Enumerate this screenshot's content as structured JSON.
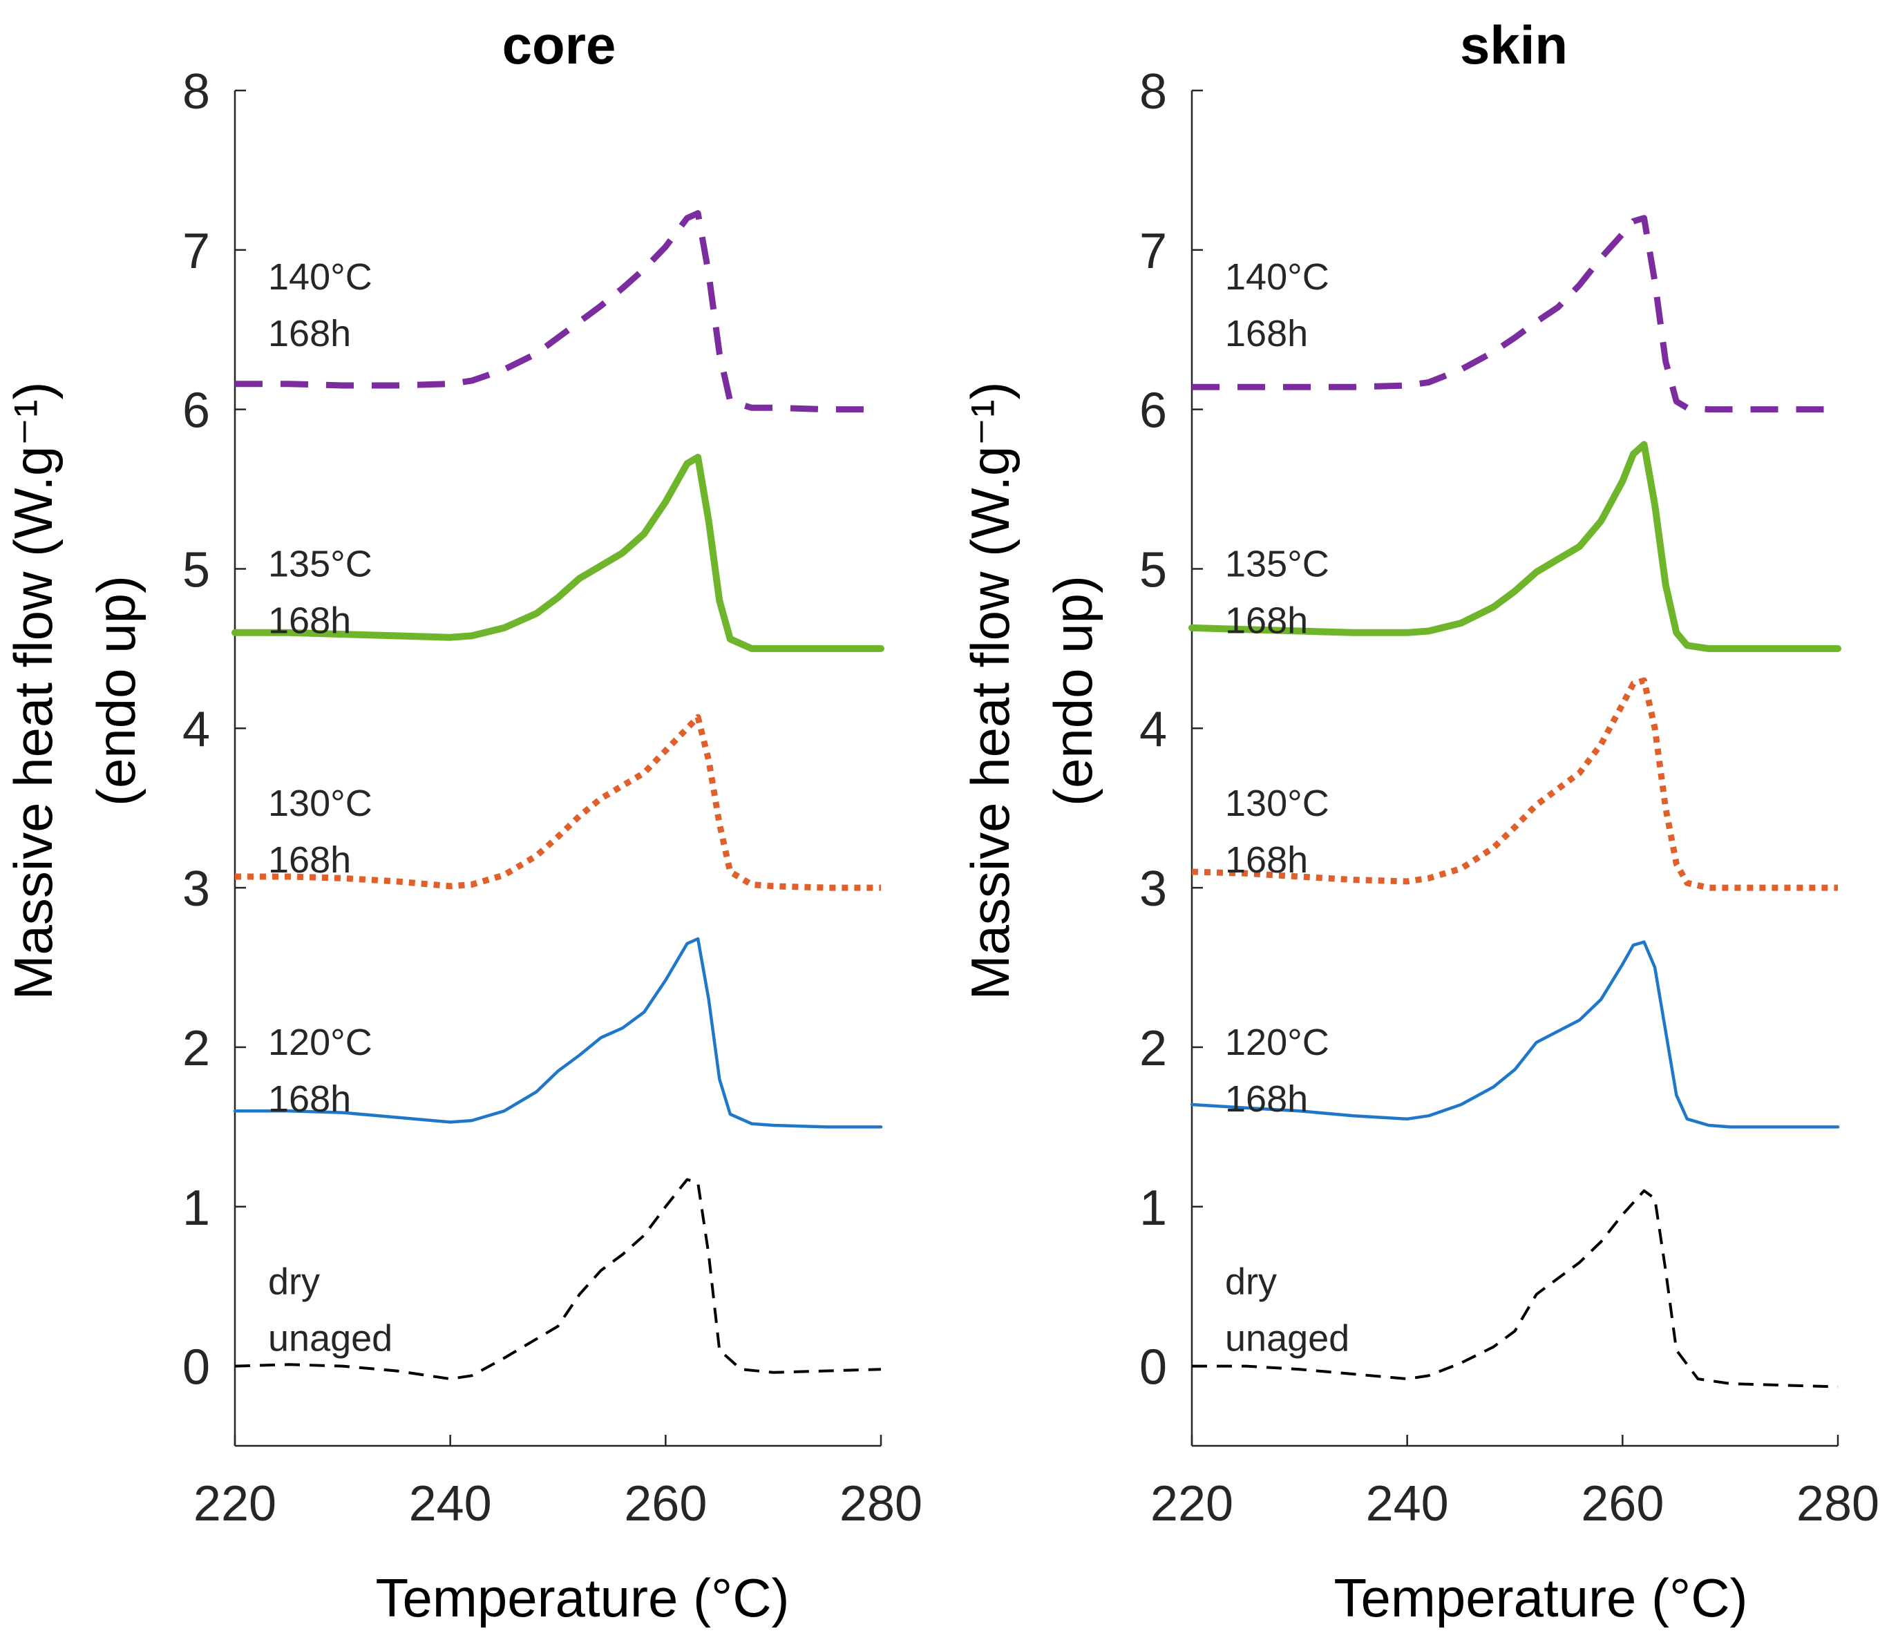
{
  "figure": {
    "y_axis_label_line1": "Massive heat flow (W.g⁻¹)",
    "y_axis_label_line2": "(endo up)"
  },
  "chart_data": [
    {
      "type": "line",
      "title": "core",
      "xlabel": "Temperature (°C)",
      "ylabel": "Massive heat flow (W.g⁻¹) (endo up)",
      "xlim": [
        220,
        280
      ],
      "ylim": [
        -0.5,
        8
      ],
      "xticks": [
        "220",
        "240",
        "260",
        "280"
      ],
      "yticks": [
        "0",
        "1",
        "2",
        "3",
        "4",
        "5",
        "6",
        "7",
        "8"
      ],
      "series": [
        {
          "name": "dry unaged",
          "label_line1": "dry",
          "label_line2": "unaged",
          "label_y": 0.4,
          "color": "#000000",
          "style": "dashed-thin",
          "x": [
            220,
            225,
            230,
            235,
            240,
            242,
            245,
            250,
            252,
            254,
            256,
            258,
            260,
            262,
            263,
            264,
            265,
            267,
            270,
            275,
            280
          ],
          "y": [
            0,
            0.01,
            0,
            -0.03,
            -0.08,
            -0.06,
            0.05,
            0.25,
            0.45,
            0.6,
            0.7,
            0.82,
            1.0,
            1.17,
            1.15,
            0.7,
            0.1,
            -0.02,
            -0.04,
            -0.03,
            -0.02
          ]
        },
        {
          "name": "120°C 168h",
          "label_line1": "120°C",
          "label_line2": "168h",
          "label_y": 1.9,
          "color": "#1f77c9",
          "style": "solid-thin",
          "x": [
            220,
            225,
            230,
            235,
            240,
            242,
            245,
            248,
            250,
            252,
            254,
            256,
            258,
            260,
            262,
            263,
            264,
            265,
            266,
            268,
            270,
            275,
            280
          ],
          "y": [
            1.6,
            1.6,
            1.59,
            1.56,
            1.53,
            1.54,
            1.6,
            1.72,
            1.85,
            1.95,
            2.06,
            2.12,
            2.22,
            2.42,
            2.65,
            2.68,
            2.3,
            1.8,
            1.58,
            1.52,
            1.51,
            1.5,
            1.5
          ]
        },
        {
          "name": "130°C 168h",
          "label_line1": "130°C",
          "label_line2": "168h",
          "label_y": 3.4,
          "color": "#e0602c",
          "style": "dotted",
          "x": [
            220,
            225,
            230,
            235,
            240,
            242,
            245,
            248,
            250,
            252,
            254,
            256,
            258,
            260,
            262,
            263,
            264,
            265,
            266,
            268,
            270,
            275,
            280
          ],
          "y": [
            3.07,
            3.07,
            3.06,
            3.04,
            3.01,
            3.02,
            3.08,
            3.2,
            3.32,
            3.45,
            3.56,
            3.64,
            3.72,
            3.86,
            4.0,
            4.07,
            3.8,
            3.4,
            3.1,
            3.02,
            3.01,
            3.0,
            3.0
          ]
        },
        {
          "name": "135°C 168h",
          "label_line1": "135°C",
          "label_line2": "168h",
          "label_y": 4.9,
          "color": "#6fb52c",
          "style": "solid-thick",
          "x": [
            220,
            225,
            230,
            235,
            240,
            242,
            245,
            248,
            250,
            252,
            254,
            256,
            258,
            260,
            262,
            263,
            264,
            265,
            266,
            268,
            270,
            275,
            280
          ],
          "y": [
            4.6,
            4.6,
            4.59,
            4.58,
            4.57,
            4.58,
            4.63,
            4.72,
            4.82,
            4.94,
            5.02,
            5.1,
            5.22,
            5.42,
            5.66,
            5.7,
            5.3,
            4.8,
            4.56,
            4.5,
            4.5,
            4.5,
            4.5
          ]
        },
        {
          "name": "140°C 168h",
          "label_line1": "140°C",
          "label_line2": "168h",
          "label_y": 6.7,
          "color": "#7b2c9e",
          "style": "dashed-thick",
          "x": [
            220,
            225,
            230,
            235,
            240,
            242,
            245,
            248,
            250,
            252,
            254,
            256,
            258,
            260,
            262,
            263,
            264,
            265,
            266,
            268,
            270,
            275,
            280
          ],
          "y": [
            6.16,
            6.16,
            6.15,
            6.15,
            6.16,
            6.18,
            6.25,
            6.35,
            6.45,
            6.55,
            6.65,
            6.76,
            6.88,
            7.02,
            7.2,
            7.23,
            6.85,
            6.35,
            6.05,
            6.01,
            6.01,
            6.0,
            6.0
          ]
        }
      ]
    },
    {
      "type": "line",
      "title": "skin",
      "xlabel": "Temperature (°C)",
      "ylabel": "Massive heat flow (W.g⁻¹) (endo up)",
      "xlim": [
        220,
        280
      ],
      "ylim": [
        -0.5,
        8
      ],
      "xticks": [
        "220",
        "240",
        "260",
        "280"
      ],
      "yticks": [
        "0",
        "1",
        "2",
        "3",
        "4",
        "5",
        "6",
        "7",
        "8"
      ],
      "series": [
        {
          "name": "dry unaged",
          "label_line1": "dry",
          "label_line2": "unaged",
          "label_y": 0.4,
          "color": "#000000",
          "style": "dashed-thin",
          "x": [
            220,
            225,
            230,
            235,
            240,
            242,
            245,
            248,
            250,
            252,
            254,
            256,
            258,
            260,
            262,
            263,
            264,
            265,
            267,
            270,
            275,
            280
          ],
          "y": [
            0,
            0,
            -0.02,
            -0.05,
            -0.08,
            -0.06,
            0.02,
            0.12,
            0.22,
            0.45,
            0.55,
            0.65,
            0.78,
            0.95,
            1.1,
            1.05,
            0.6,
            0.1,
            -0.08,
            -0.11,
            -0.12,
            -0.13
          ]
        },
        {
          "name": "120°C 168h",
          "label_line1": "120°C",
          "label_line2": "168h",
          "label_y": 1.9,
          "color": "#1f77c9",
          "style": "solid-thin",
          "x": [
            220,
            225,
            230,
            235,
            240,
            242,
            245,
            248,
            250,
            252,
            254,
            256,
            258,
            260,
            261,
            262,
            263,
            264,
            265,
            266,
            268,
            270,
            275,
            280
          ],
          "y": [
            1.64,
            1.62,
            1.6,
            1.57,
            1.55,
            1.57,
            1.64,
            1.75,
            1.86,
            2.03,
            2.1,
            2.17,
            2.3,
            2.52,
            2.64,
            2.66,
            2.5,
            2.1,
            1.7,
            1.55,
            1.51,
            1.5,
            1.5,
            1.5
          ]
        },
        {
          "name": "130°C 168h",
          "label_line1": "130°C",
          "label_line2": "168h",
          "label_y": 3.4,
          "color": "#e0602c",
          "style": "dotted",
          "x": [
            220,
            225,
            230,
            235,
            240,
            242,
            245,
            248,
            250,
            252,
            254,
            256,
            258,
            260,
            261,
            262,
            263,
            264,
            265,
            266,
            268,
            270,
            275,
            280
          ],
          "y": [
            3.1,
            3.09,
            3.07,
            3.05,
            3.04,
            3.06,
            3.12,
            3.25,
            3.38,
            3.52,
            3.62,
            3.72,
            3.9,
            4.15,
            4.28,
            4.3,
            4.0,
            3.5,
            3.15,
            3.03,
            3.0,
            3.0,
            3.0,
            3.0
          ]
        },
        {
          "name": "135°C 168h",
          "label_line1": "135°C",
          "label_line2": "168h",
          "label_y": 4.9,
          "color": "#6fb52c",
          "style": "solid-thick",
          "x": [
            220,
            225,
            230,
            235,
            240,
            242,
            245,
            248,
            250,
            252,
            254,
            256,
            258,
            260,
            261,
            262,
            263,
            264,
            265,
            266,
            268,
            270,
            275,
            280
          ],
          "y": [
            4.63,
            4.62,
            4.61,
            4.6,
            4.6,
            4.61,
            4.66,
            4.76,
            4.86,
            4.98,
            5.06,
            5.14,
            5.3,
            5.55,
            5.72,
            5.78,
            5.4,
            4.9,
            4.6,
            4.52,
            4.5,
            4.5,
            4.5,
            4.5
          ]
        },
        {
          "name": "140°C 168h",
          "label_line1": "140°C",
          "label_line2": "168h",
          "label_y": 6.7,
          "color": "#7b2c9e",
          "style": "dashed-thick",
          "x": [
            220,
            225,
            230,
            235,
            240,
            242,
            245,
            248,
            250,
            252,
            254,
            256,
            258,
            260,
            261,
            262,
            263,
            264,
            265,
            266,
            268,
            270,
            275,
            280
          ],
          "y": [
            6.14,
            6.14,
            6.14,
            6.14,
            6.15,
            6.17,
            6.25,
            6.36,
            6.45,
            6.55,
            6.64,
            6.78,
            6.95,
            7.1,
            7.18,
            7.2,
            6.8,
            6.3,
            6.05,
            6.01,
            6.0,
            6.0,
            6.0,
            6.0
          ]
        }
      ]
    }
  ]
}
